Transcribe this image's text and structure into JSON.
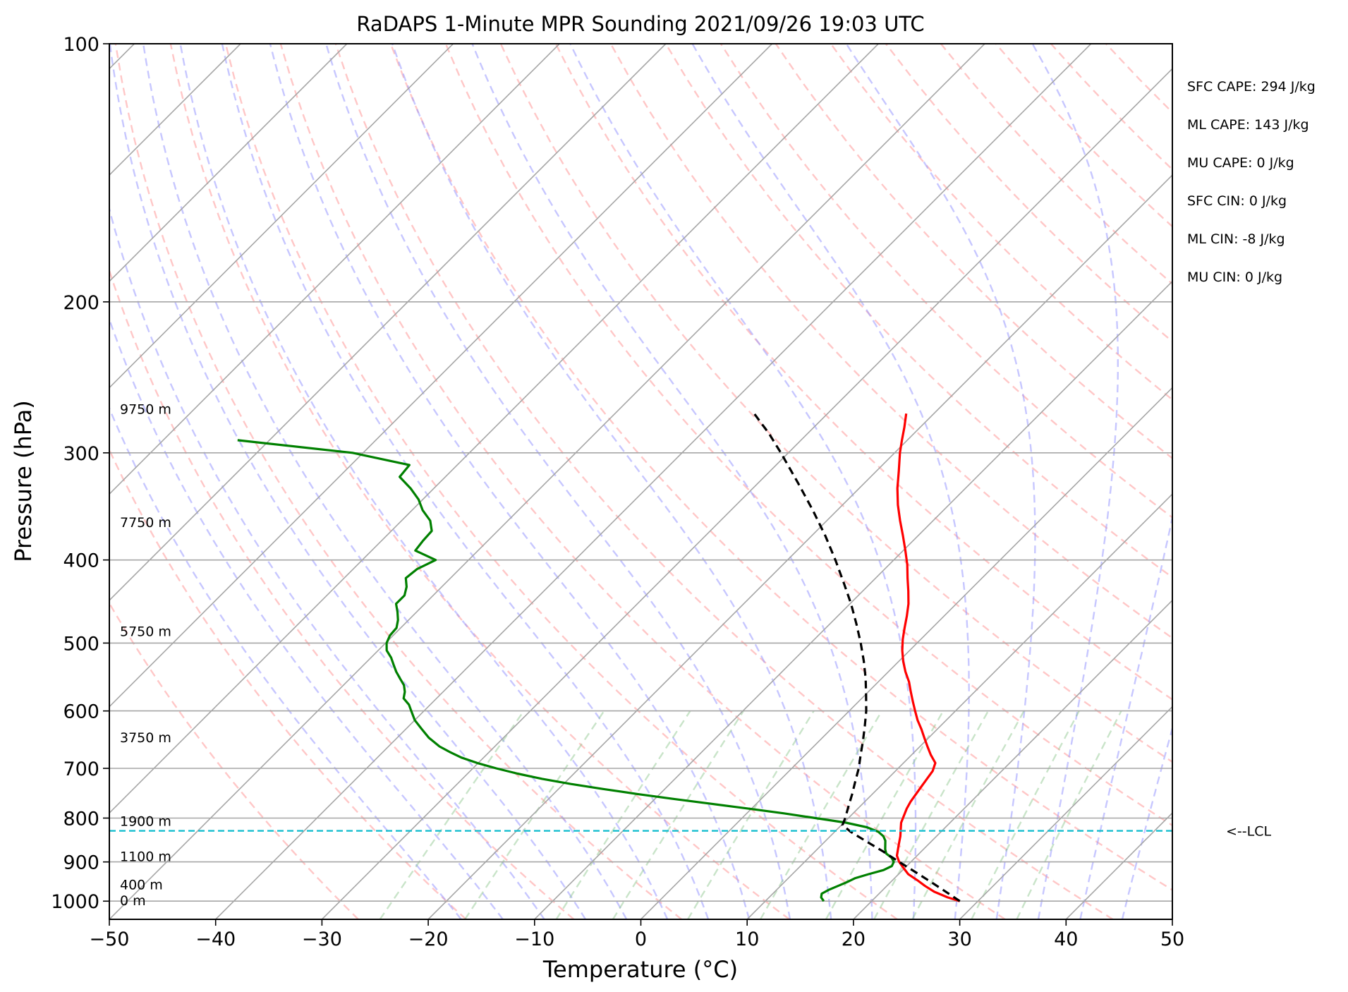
{
  "chart_data": {
    "type": "line",
    "title": "RaDAPS 1-Minute MPR Sounding 2021/09/26 19:03 UTC",
    "xlabel": "Temperature (°C)",
    "ylabel": "Pressure (hPa)",
    "xlim": [
      -50,
      50
    ],
    "ylim": [
      1050,
      100
    ],
    "y_scale": "log",
    "skew": "skew-T log-P",
    "grid": true,
    "x_ticks": [
      "−50",
      "−40",
      "−30",
      "−20",
      "−10",
      "0",
      "10",
      "20",
      "30",
      "40",
      "50"
    ],
    "y_ticks": [
      "100",
      "200",
      "300",
      "400",
      "500",
      "600",
      "700",
      "800",
      "900",
      "1000"
    ],
    "height_labels": [
      {
        "label": "0 m",
        "p": 1000
      },
      {
        "label": "400 m",
        "p": 958
      },
      {
        "label": "1100 m",
        "p": 888
      },
      {
        "label": "1900 m",
        "p": 808
      },
      {
        "label": "3750 m",
        "p": 645
      },
      {
        "label": "5750 m",
        "p": 485
      },
      {
        "label": "7750 m",
        "p": 362
      },
      {
        "label": "9750 m",
        "p": 267
      }
    ],
    "series": [
      {
        "color": "#ff0000",
        "p": [
          1000,
          990,
          975,
          960,
          945,
          930,
          915,
          900,
          885,
          870,
          855,
          840,
          825,
          810,
          795,
          780,
          765,
          750,
          735,
          720,
          705,
          690,
          675,
          660,
          645,
          630,
          615,
          600,
          585,
          570,
          555,
          540,
          525,
          510,
          495,
          480,
          465,
          450,
          435,
          420,
          405,
          390,
          375,
          360,
          345,
          330,
          315,
          300,
          290,
          280,
          270
        ],
        "values": [
          28.3,
          26.8,
          25.0,
          23.6,
          22.3,
          20.9,
          19.9,
          18.9,
          18.1,
          17.6,
          17.1,
          16.6,
          16.0,
          15.4,
          15.0,
          14.6,
          14.3,
          14.1,
          13.9,
          13.7,
          13.5,
          13.0,
          11.8,
          10.7,
          9.6,
          8.5,
          7.3,
          6.2,
          5.1,
          4.0,
          2.9,
          1.6,
          0.4,
          -0.7,
          -1.7,
          -2.6,
          -3.5,
          -4.5,
          -5.7,
          -7.0,
          -8.3,
          -9.8,
          -11.4,
          -13.1,
          -14.8,
          -16.4,
          -17.9,
          -19.5,
          -20.5,
          -21.5,
          -22.6
        ]
      },
      {
        "color": "#008000",
        "p": [
          1000,
          990,
          980,
          970,
          960,
          950,
          940,
          930,
          920,
          910,
          900,
          890,
          880,
          870,
          860,
          850,
          840,
          830,
          820,
          810,
          800,
          790,
          780,
          770,
          760,
          750,
          740,
          730,
          720,
          710,
          700,
          690,
          680,
          670,
          660,
          645,
          630,
          615,
          600,
          590,
          580,
          570,
          560,
          550,
          540,
          530,
          520,
          510,
          500,
          490,
          480,
          470,
          460,
          450,
          440,
          430,
          420,
          410,
          400,
          390,
          380,
          370,
          360,
          350,
          340,
          330,
          320,
          310,
          300,
          290
        ],
        "values": [
          15.5,
          14.9,
          14.6,
          14.9,
          15.4,
          15.9,
          16.3,
          17.2,
          18.2,
          18.6,
          18.4,
          17.8,
          16.9,
          16.4,
          16.0,
          15.6,
          15.0,
          14.1,
          12.6,
          10.2,
          6.9,
          3.5,
          -0.3,
          -4.2,
          -8.2,
          -12.1,
          -15.8,
          -19.3,
          -22.5,
          -25.3,
          -27.8,
          -30.1,
          -32.1,
          -33.7,
          -35.2,
          -37.0,
          -38.5,
          -40.0,
          -41.2,
          -42.0,
          -43.1,
          -43.6,
          -44.3,
          -45.3,
          -46.3,
          -47.2,
          -48.1,
          -49.2,
          -49.9,
          -50.3,
          -50.4,
          -51.0,
          -51.8,
          -52.7,
          -52.7,
          -53.3,
          -54.2,
          -54.0,
          -53.1,
          -55.9,
          -56.1,
          -56.2,
          -57.3,
          -59.0,
          -60.4,
          -62.2,
          -64.3,
          -64.5,
          -71.0,
          -83.0
        ]
      },
      {
        "color": "#000000",
        "style": "dashed",
        "p": [
          1000,
          975,
          950,
          925,
          900,
          875,
          850,
          840,
          830,
          815,
          800,
          775,
          750,
          725,
          700,
          675,
          650,
          625,
          600,
          575,
          550,
          525,
          500,
          475,
          450,
          425,
          400,
          375,
          350,
          325,
          300,
          285,
          270
        ],
        "values": [
          28.3,
          26.1,
          23.8,
          21.4,
          18.9,
          16.4,
          13.7,
          12.6,
          11.5,
          10.1,
          9.7,
          8.9,
          8.1,
          7.2,
          6.3,
          5.2,
          4.1,
          2.9,
          1.6,
          0.1,
          -1.5,
          -3.3,
          -5.3,
          -7.5,
          -9.9,
          -12.6,
          -15.5,
          -18.7,
          -22.3,
          -26.3,
          -30.7,
          -33.6,
          -36.9
        ]
      }
    ],
    "lcl": {
      "p": 828,
      "label": "<--LCL",
      "color": "#17becf"
    }
  },
  "stats": [
    {
      "label": "SFC CAPE: 294 J/kg"
    },
    {
      "label": "ML CAPE: 143 J/kg"
    },
    {
      "label": "MU CAPE: 0 J/kg"
    },
    {
      "label": "SFC CIN: 0 J/kg"
    },
    {
      "label": "ML CIN: -8 J/kg"
    },
    {
      "label": "MU CIN: 0 J/kg"
    }
  ],
  "colors": {
    "dry_adiabat": "#ff9999",
    "moist_adiabat": "#9999ff",
    "mixing_ratio": "#88c488",
    "isotherm": "#a6a6a6",
    "isobar": "#a6a6a6"
  }
}
